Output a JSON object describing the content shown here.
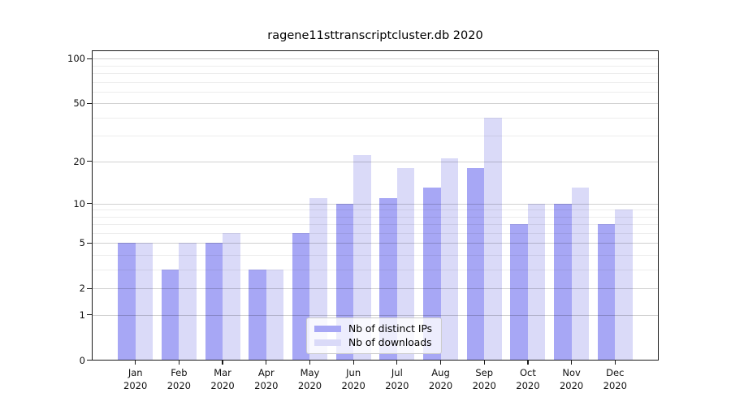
{
  "title": "ragene11sttranscriptcluster.db 2020",
  "chart_data": {
    "type": "bar",
    "title": "ragene11sttranscriptcluster.db 2020",
    "categories": [
      "Jan 2020",
      "Feb 2020",
      "Mar 2020",
      "Apr 2020",
      "May 2020",
      "Jun 2020",
      "Jul 2020",
      "Aug 2020",
      "Sep 2020",
      "Oct 2020",
      "Nov 2020",
      "Dec 2020"
    ],
    "month_labels": [
      "Jan",
      "Feb",
      "Mar",
      "Apr",
      "May",
      "Jun",
      "Jul",
      "Aug",
      "Sep",
      "Oct",
      "Nov",
      "Dec"
    ],
    "year_label": "2020",
    "series": [
      {
        "name": "Nb of distinct IPs",
        "color": "#a7a7f5",
        "values": [
          5,
          3,
          5,
          3,
          6,
          10,
          11,
          13,
          18,
          7,
          10,
          7
        ]
      },
      {
        "name": "Nb of downloads",
        "color": "#dadaf8",
        "values": [
          5,
          5,
          6,
          3,
          11,
          22,
          18,
          21,
          40,
          10,
          13,
          9
        ]
      }
    ],
    "y_scale": "log1p",
    "y_ticks": [
      0,
      1,
      2,
      5,
      10,
      20,
      50,
      100
    ],
    "y_minor_gridlines": [
      3,
      4,
      6,
      7,
      8,
      9,
      30,
      40,
      60,
      70,
      80,
      90
    ],
    "ylim": [
      0,
      113
    ],
    "xlabel": "",
    "ylabel": "",
    "grid": "horizontal, drawn above bars",
    "legend_position": "lower-center"
  }
}
